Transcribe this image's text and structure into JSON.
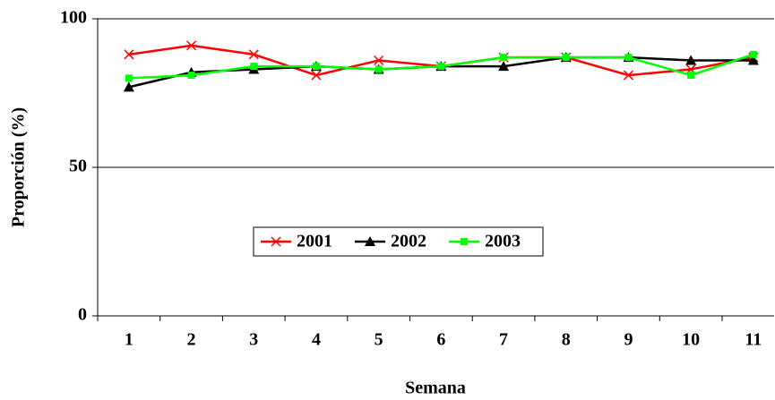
{
  "chart_data": {
    "type": "line",
    "x_label": "Semana",
    "y_label": "Proporción (%)",
    "categories": [
      "1",
      "2",
      "3",
      "4",
      "5",
      "6",
      "7",
      "8",
      "9",
      "10",
      "11"
    ],
    "series": [
      {
        "name": "2001",
        "color": "#ff0000",
        "marker": "x",
        "values": [
          88,
          91,
          88,
          81,
          86,
          84,
          87,
          87,
          81,
          83,
          87
        ]
      },
      {
        "name": "2002",
        "color": "#000000",
        "marker": "triangle",
        "values": [
          77,
          82,
          83,
          84,
          83,
          84,
          84,
          87,
          87,
          86,
          86
        ]
      },
      {
        "name": "2003",
        "color": "#00ff00",
        "marker": "square",
        "values": [
          80,
          81,
          84,
          84,
          83,
          84,
          87,
          87,
          87,
          81,
          88
        ]
      }
    ],
    "ylim": [
      0,
      100
    ],
    "yticks": [
      0,
      50,
      100
    ],
    "grid": true
  }
}
